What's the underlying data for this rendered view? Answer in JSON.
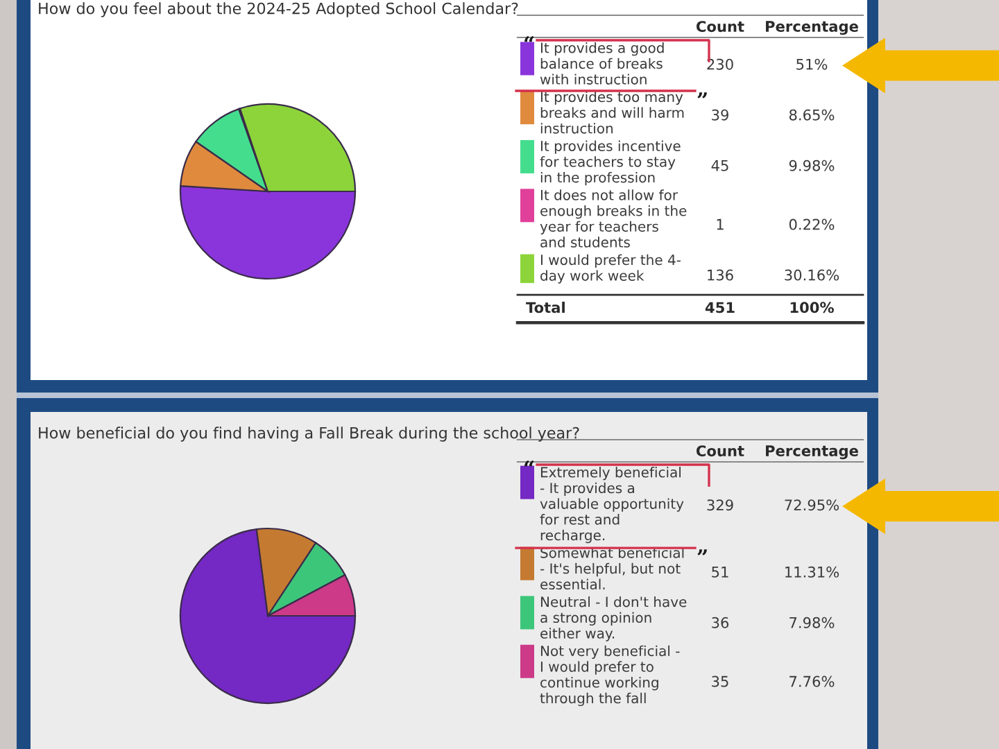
{
  "chart_data": [
    {
      "type": "pie",
      "title": "How do you feel about the 2024-25 Adopted School Calendar?",
      "categories": [
        "It provides a good balance of breaks with instruction",
        "It provides too many breaks and will harm instruction",
        "It provides incentive for teachers to stay in the profession",
        "It does not allow for enough breaks in the year for teachers and students",
        "I would prefer the 4-day work week"
      ],
      "values": [
        230,
        39,
        45,
        1,
        136
      ],
      "colors": [
        "#8a35dc",
        "#e08a3e",
        "#44dd8e",
        "#e0409a",
        "#8cd43a"
      ],
      "data_labels": true,
      "legend": "right",
      "annotations": [
        "Count",
        "Percentage",
        "51%",
        "8.65%",
        "9.98%",
        "0.22%",
        "30.16%",
        "Total",
        "451",
        "100%"
      ]
    },
    {
      "type": "pie",
      "title": "How beneficial do you find having a Fall Break during the school year?",
      "categories": [
        "Extremely beneficial - It provides a valuable opportunity for rest and recharge.",
        "Somewhat beneficial - It's helpful, but not essential.",
        "Neutral - I don't have a strong opinion either way.",
        "Not very beneficial - I would prefer to continue working through the fall"
      ],
      "values": [
        329,
        51,
        36,
        35
      ],
      "colors": [
        "#7428c4",
        "#c47a30",
        "#3cc67a",
        "#cc3a88"
      ],
      "data_labels": true,
      "legend": "right",
      "annotations": [
        "Count",
        "Percentage",
        "72.95%",
        "11.31%",
        "7.98%",
        "7.76%"
      ]
    }
  ]
}
